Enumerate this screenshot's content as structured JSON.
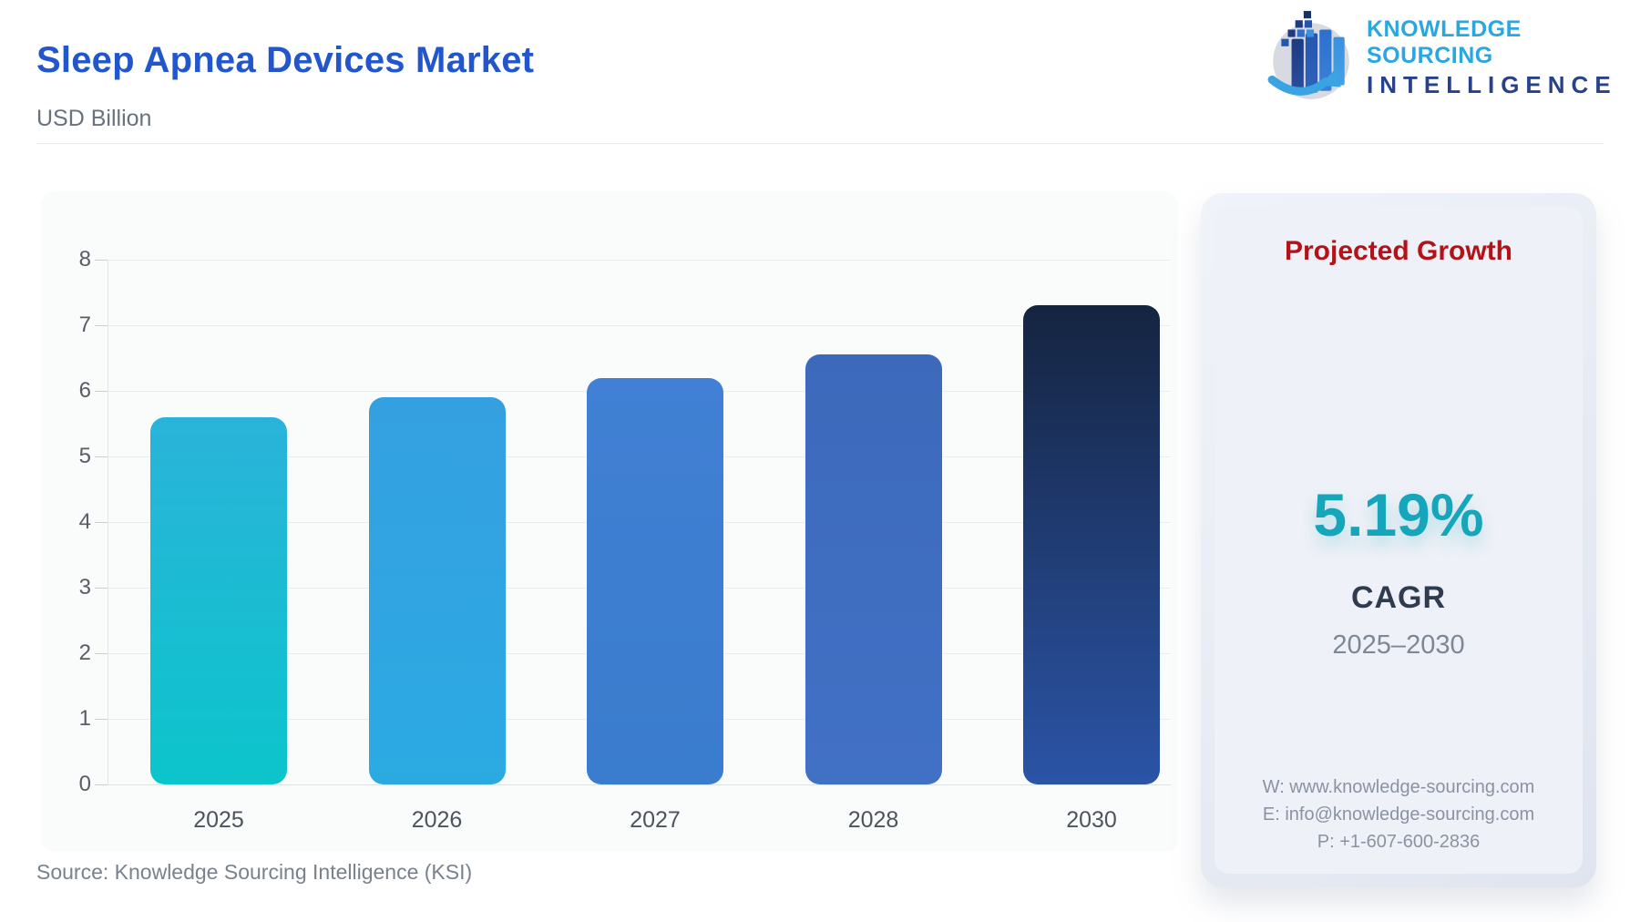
{
  "header": {
    "title": "Sleep Apnea Devices Market",
    "subtitle": "USD Billion",
    "logo": {
      "line1": "KNOWLEDGE SOURCING",
      "line2": "INTELLIGENCE",
      "icon": "globe-bars-arrow-icon"
    }
  },
  "chart_data": {
    "type": "bar",
    "title": "Sleep Apnea Devices Market",
    "ylabel": "USD Billion",
    "xlabel": "",
    "categories": [
      "2025",
      "2026",
      "2027",
      "2028",
      "2030"
    ],
    "values": [
      5.6,
      5.9,
      6.2,
      6.55,
      7.3
    ],
    "ylim": [
      0,
      8
    ],
    "yticks": [
      0,
      1,
      2,
      3,
      4,
      5,
      6,
      7,
      8
    ],
    "grid": true,
    "legend": false,
    "bar_gradients": [
      [
        "#2ab3da",
        "#0cc5cb"
      ],
      [
        "#35a0e0",
        "#2baae2"
      ],
      [
        "#4180d4",
        "#3a7ccd"
      ],
      [
        "#3d69bb",
        "#4171c5"
      ],
      [
        "#152440",
        "#2b54a7"
      ]
    ]
  },
  "panel": {
    "title": "Projected Growth",
    "cagr_value": "5.19%",
    "cagr_label": "CAGR",
    "period": "2025–2030",
    "contact": {
      "website": "W: www.knowledge-sourcing.com",
      "email": "E: info@knowledge-sourcing.com",
      "phone": "P: +1-607-600-2836"
    }
  },
  "footer": {
    "source": "Source: Knowledge Sourcing Intelligence (KSI)"
  },
  "colors": {
    "title_blue": "#2156cd",
    "panel_red": "#b11318",
    "cagr_teal": "#16a6bb",
    "logo_light_blue": "#2aa6e0",
    "logo_dark_blue": "#27418c"
  }
}
